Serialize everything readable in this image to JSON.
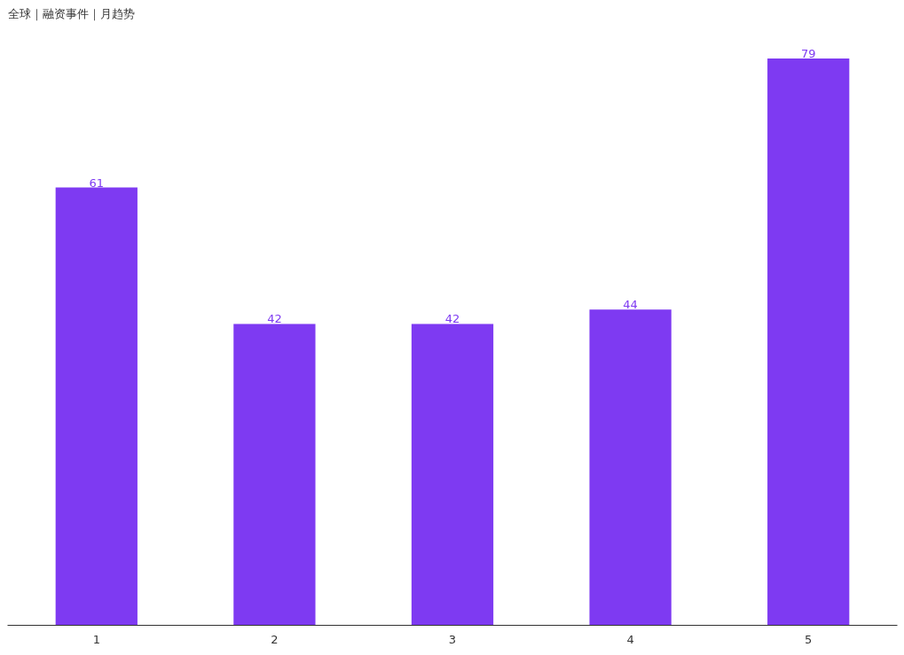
{
  "chart_data": {
    "type": "bar",
    "title": "全球｜融资事件｜月趋势",
    "categories": [
      "1",
      "2",
      "3",
      "4",
      "5"
    ],
    "values": [
      61,
      42,
      42,
      44,
      79
    ],
    "color": "#7e3af2",
    "data_labels": true,
    "grid": false
  }
}
